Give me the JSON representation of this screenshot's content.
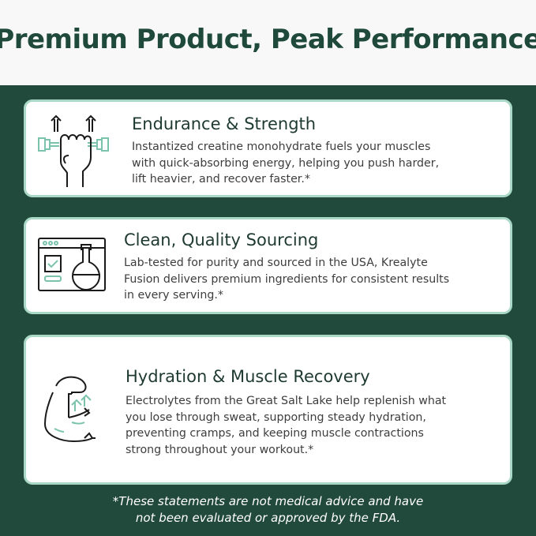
{
  "title": "Premium Product, Peak Performance",
  "colors": {
    "panel": "#224a3c",
    "accent": "#a9d8c6",
    "heading": "#1f4a3b"
  },
  "cards": [
    {
      "icon": "fist-dumbbell-icon",
      "heading": "Endurance & Strength",
      "lines": [
        "Instantized creatine monohydrate fuels your muscles",
        "with quick-absorbing energy, helping you push harder,",
        "lift heavier, and recover faster.*"
      ]
    },
    {
      "icon": "lab-flask-browser-icon",
      "heading": "Clean, Quality Sourcing",
      "lines": [
        "Lab-tested for purity and sourced in the USA, Krealyte",
        "Fusion delivers premium ingredients for consistent results",
        "in every serving.*"
      ]
    },
    {
      "icon": "flexed-arm-icon",
      "heading": "Hydration & Muscle Recovery",
      "lines": [
        "Electrolytes from the Great Salt Lake help replenish what",
        "you lose through sweat, supporting steady hydration,",
        "preventing cramps, and keeping muscle contractions",
        "strong throughout your workout.*"
      ]
    }
  ],
  "disclaimer": [
    "*These statements are not medical advice and have",
    "not been evaluated or approved by the FDA."
  ]
}
